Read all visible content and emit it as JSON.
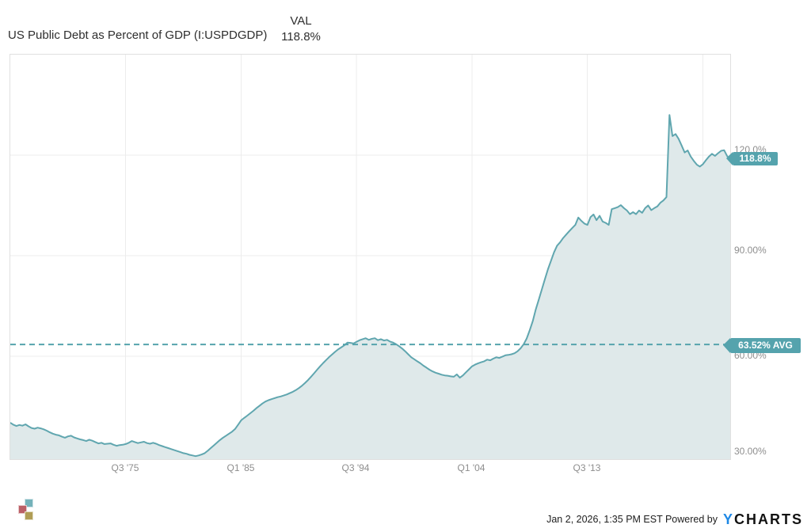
{
  "header": {
    "title": "US Public Debt as Percent of GDP (I:USPDGDP)",
    "val_label": "VAL",
    "val_value": "118.8%"
  },
  "chart_data": {
    "type": "area",
    "title": "US Public Debt as Percent of GDP (I:USPDGDP)",
    "unit": "percent of GDP",
    "grid": true,
    "legend_position": "top-right-of-title",
    "x_range": [
      1966.0,
      2025.25
    ],
    "y_axis_min": 29.3,
    "y_axis_max": 150.0,
    "x_ticks": [
      {
        "label": "Q3 '75",
        "t": 1975.5
      },
      {
        "label": "Q1 '85",
        "t": 1985.0
      },
      {
        "label": "Q3 '94",
        "t": 1994.5
      },
      {
        "label": "Q1 '04",
        "t": 2004.0
      },
      {
        "label": "Q3 '13",
        "t": 2013.5
      },
      {
        "label": "",
        "t": 2023.0
      }
    ],
    "y_ticks": [
      {
        "label": "120.0%",
        "value": 120
      },
      {
        "label": "90.00%",
        "value": 90
      },
      {
        "label": "60.00%",
        "value": 60
      },
      {
        "label": "30.00%",
        "value": 30
      }
    ],
    "average_line": {
      "value": 63.52,
      "label": "63.52% AVG",
      "style": "dashed"
    },
    "last_point": {
      "value": 118.8,
      "label": "118.8%"
    },
    "series": [
      {
        "name": "US Public Debt as Percent of GDP (I:USPDGDP)",
        "points": [
          [
            1966.0,
            40.2
          ],
          [
            1966.25,
            39.6
          ],
          [
            1966.5,
            39.2
          ],
          [
            1966.75,
            39.5
          ],
          [
            1967.0,
            39.3
          ],
          [
            1967.25,
            39.7
          ],
          [
            1967.5,
            39.1
          ],
          [
            1967.75,
            38.6
          ],
          [
            1968.0,
            38.4
          ],
          [
            1968.25,
            38.7
          ],
          [
            1968.5,
            38.5
          ],
          [
            1968.75,
            38.2
          ],
          [
            1969.0,
            37.8
          ],
          [
            1969.25,
            37.3
          ],
          [
            1969.5,
            36.9
          ],
          [
            1969.75,
            36.6
          ],
          [
            1970.0,
            36.4
          ],
          [
            1970.25,
            36.0
          ],
          [
            1970.5,
            35.7
          ],
          [
            1970.75,
            36.1
          ],
          [
            1971.0,
            36.3
          ],
          [
            1971.25,
            35.8
          ],
          [
            1971.5,
            35.5
          ],
          [
            1971.75,
            35.2
          ],
          [
            1972.0,
            35.0
          ],
          [
            1972.25,
            34.7
          ],
          [
            1972.5,
            35.1
          ],
          [
            1972.75,
            34.8
          ],
          [
            1973.0,
            34.4
          ],
          [
            1973.25,
            34.0
          ],
          [
            1973.5,
            34.2
          ],
          [
            1973.75,
            33.8
          ],
          [
            1974.0,
            33.9
          ],
          [
            1974.25,
            34.0
          ],
          [
            1974.5,
            33.6
          ],
          [
            1974.75,
            33.3
          ],
          [
            1975.0,
            33.5
          ],
          [
            1975.25,
            33.6
          ],
          [
            1975.5,
            33.8
          ],
          [
            1975.75,
            34.2
          ],
          [
            1976.0,
            34.7
          ],
          [
            1976.25,
            34.4
          ],
          [
            1976.5,
            34.1
          ],
          [
            1976.75,
            34.3
          ],
          [
            1977.0,
            34.5
          ],
          [
            1977.25,
            34.1
          ],
          [
            1977.5,
            33.9
          ],
          [
            1977.75,
            34.2
          ],
          [
            1978.0,
            33.9
          ],
          [
            1978.25,
            33.5
          ],
          [
            1978.5,
            33.2
          ],
          [
            1978.75,
            32.9
          ],
          [
            1979.0,
            32.6
          ],
          [
            1979.25,
            32.3
          ],
          [
            1979.5,
            32.0
          ],
          [
            1979.75,
            31.7
          ],
          [
            1980.0,
            31.4
          ],
          [
            1980.25,
            31.1
          ],
          [
            1980.5,
            30.9
          ],
          [
            1980.75,
            30.6
          ],
          [
            1981.0,
            30.4
          ],
          [
            1981.25,
            30.2
          ],
          [
            1981.5,
            30.4
          ],
          [
            1981.75,
            30.7
          ],
          [
            1982.0,
            31.1
          ],
          [
            1982.25,
            31.8
          ],
          [
            1982.5,
            32.6
          ],
          [
            1982.75,
            33.4
          ],
          [
            1983.0,
            34.2
          ],
          [
            1983.25,
            35.0
          ],
          [
            1983.5,
            35.7
          ],
          [
            1983.75,
            36.3
          ],
          [
            1984.0,
            36.9
          ],
          [
            1984.25,
            37.5
          ],
          [
            1984.5,
            38.3
          ],
          [
            1984.75,
            39.6
          ],
          [
            1985.0,
            40.9
          ],
          [
            1985.25,
            41.6
          ],
          [
            1985.5,
            42.3
          ],
          [
            1985.75,
            43.0
          ],
          [
            1986.0,
            43.7
          ],
          [
            1986.25,
            44.5
          ],
          [
            1986.5,
            45.2
          ],
          [
            1986.75,
            45.9
          ],
          [
            1987.0,
            46.5
          ],
          [
            1987.25,
            46.9
          ],
          [
            1987.5,
            47.2
          ],
          [
            1987.75,
            47.5
          ],
          [
            1988.0,
            47.8
          ],
          [
            1988.25,
            48.0
          ],
          [
            1988.5,
            48.3
          ],
          [
            1988.75,
            48.6
          ],
          [
            1989.0,
            49.0
          ],
          [
            1989.25,
            49.4
          ],
          [
            1989.5,
            49.9
          ],
          [
            1989.75,
            50.5
          ],
          [
            1990.0,
            51.2
          ],
          [
            1990.25,
            52.0
          ],
          [
            1990.5,
            52.9
          ],
          [
            1990.75,
            53.9
          ],
          [
            1991.0,
            54.9
          ],
          [
            1991.25,
            56.0
          ],
          [
            1991.5,
            57.0
          ],
          [
            1991.75,
            58.0
          ],
          [
            1992.0,
            58.9
          ],
          [
            1992.25,
            59.8
          ],
          [
            1992.5,
            60.6
          ],
          [
            1992.75,
            61.4
          ],
          [
            1993.0,
            62.1
          ],
          [
            1993.25,
            62.7
          ],
          [
            1993.5,
            63.3
          ],
          [
            1993.75,
            64.1
          ],
          [
            1994.0,
            64.0
          ],
          [
            1994.25,
            63.8
          ],
          [
            1994.5,
            64.3
          ],
          [
            1994.75,
            64.8
          ],
          [
            1995.0,
            65.1
          ],
          [
            1995.25,
            65.4
          ],
          [
            1995.5,
            64.9
          ],
          [
            1995.75,
            65.2
          ],
          [
            1996.0,
            65.4
          ],
          [
            1996.25,
            64.8
          ],
          [
            1996.5,
            65.1
          ],
          [
            1996.75,
            64.7
          ],
          [
            1997.0,
            64.9
          ],
          [
            1997.25,
            64.4
          ],
          [
            1997.5,
            64.1
          ],
          [
            1997.75,
            63.6
          ],
          [
            1998.0,
            63.0
          ],
          [
            1998.25,
            62.3
          ],
          [
            1998.5,
            61.5
          ],
          [
            1998.75,
            60.6
          ],
          [
            1999.0,
            59.7
          ],
          [
            1999.25,
            59.1
          ],
          [
            1999.5,
            58.5
          ],
          [
            1999.75,
            57.9
          ],
          [
            2000.0,
            57.2
          ],
          [
            2000.25,
            56.6
          ],
          [
            2000.5,
            56.0
          ],
          [
            2000.75,
            55.5
          ],
          [
            2001.0,
            55.1
          ],
          [
            2001.25,
            54.8
          ],
          [
            2001.5,
            54.5
          ],
          [
            2001.75,
            54.3
          ],
          [
            2002.0,
            54.2
          ],
          [
            2002.25,
            54.0
          ],
          [
            2002.5,
            53.9
          ],
          [
            2002.75,
            54.6
          ],
          [
            2003.0,
            53.6
          ],
          [
            2003.25,
            54.3
          ],
          [
            2003.5,
            55.2
          ],
          [
            2003.75,
            56.1
          ],
          [
            2004.0,
            57.0
          ],
          [
            2004.25,
            57.5
          ],
          [
            2004.5,
            57.9
          ],
          [
            2004.75,
            58.2
          ],
          [
            2005.0,
            58.5
          ],
          [
            2005.25,
            59.0
          ],
          [
            2005.5,
            58.8
          ],
          [
            2005.75,
            59.3
          ],
          [
            2006.0,
            59.7
          ],
          [
            2006.25,
            59.5
          ],
          [
            2006.5,
            59.9
          ],
          [
            2006.75,
            60.3
          ],
          [
            2007.0,
            60.4
          ],
          [
            2007.25,
            60.6
          ],
          [
            2007.5,
            60.9
          ],
          [
            2007.75,
            61.5
          ],
          [
            2008.0,
            62.4
          ],
          [
            2008.25,
            63.6
          ],
          [
            2008.5,
            65.3
          ],
          [
            2008.75,
            67.8
          ],
          [
            2009.0,
            70.5
          ],
          [
            2009.25,
            74.0
          ],
          [
            2009.5,
            77.0
          ],
          [
            2009.75,
            80.0
          ],
          [
            2010.0,
            83.0
          ],
          [
            2010.25,
            86.0
          ],
          [
            2010.5,
            88.5
          ],
          [
            2010.75,
            91.0
          ],
          [
            2011.0,
            93.0
          ],
          [
            2011.25,
            94.0
          ],
          [
            2011.5,
            95.3
          ],
          [
            2011.75,
            96.3
          ],
          [
            2012.0,
            97.3
          ],
          [
            2012.25,
            98.3
          ],
          [
            2012.5,
            99.2
          ],
          [
            2012.75,
            101.4
          ],
          [
            2013.0,
            100.4
          ],
          [
            2013.25,
            99.6
          ],
          [
            2013.5,
            99.2
          ],
          [
            2013.75,
            101.5
          ],
          [
            2014.0,
            102.3
          ],
          [
            2014.25,
            100.6
          ],
          [
            2014.5,
            101.9
          ],
          [
            2014.75,
            100.2
          ],
          [
            2015.0,
            99.8
          ],
          [
            2015.25,
            99.2
          ],
          [
            2015.5,
            103.9
          ],
          [
            2015.75,
            104.2
          ],
          [
            2016.0,
            104.5
          ],
          [
            2016.25,
            105.1
          ],
          [
            2016.5,
            104.2
          ],
          [
            2016.75,
            103.5
          ],
          [
            2017.0,
            102.4
          ],
          [
            2017.25,
            103.0
          ],
          [
            2017.5,
            102.4
          ],
          [
            2017.75,
            103.5
          ],
          [
            2018.0,
            102.8
          ],
          [
            2018.25,
            104.2
          ],
          [
            2018.5,
            105.0
          ],
          [
            2018.75,
            103.6
          ],
          [
            2019.0,
            104.2
          ],
          [
            2019.25,
            104.7
          ],
          [
            2019.5,
            105.8
          ],
          [
            2019.75,
            106.5
          ],
          [
            2020.0,
            107.5
          ],
          [
            2020.25,
            132.0
          ],
          [
            2020.5,
            125.7
          ],
          [
            2020.75,
            126.3
          ],
          [
            2021.0,
            124.9
          ],
          [
            2021.25,
            122.9
          ],
          [
            2021.5,
            120.8
          ],
          [
            2021.75,
            121.4
          ],
          [
            2022.0,
            119.6
          ],
          [
            2022.25,
            118.3
          ],
          [
            2022.5,
            117.2
          ],
          [
            2022.75,
            116.6
          ],
          [
            2023.0,
            117.3
          ],
          [
            2023.25,
            118.5
          ],
          [
            2023.5,
            119.6
          ],
          [
            2023.75,
            120.4
          ],
          [
            2024.0,
            119.8
          ],
          [
            2024.25,
            120.6
          ],
          [
            2024.5,
            121.3
          ],
          [
            2024.75,
            121.5
          ],
          [
            2025.0,
            119.7
          ],
          [
            2025.25,
            118.8
          ]
        ]
      }
    ]
  },
  "colors": {
    "line": "#60a6af",
    "fill": "#dfe9ea",
    "badge": "#55a3ad",
    "avg_line": "#55a3ad",
    "grid": "#ececec",
    "plot_border": "#e0e0e0",
    "axis_text": "#8e8e8e",
    "title_text": "#2e2e2e",
    "brand_blue": "#1e88e5",
    "brand_dark": "#121212",
    "logo_teal": "#74b2ba",
    "logo_red": "#bb5f66",
    "logo_gold": "#b09d55"
  },
  "footer": {
    "timestamp": "Jan 2, 2026, 1:35 PM EST",
    "powered_by": "Powered by",
    "brand_first_letter": "Y",
    "brand_rest": "CHARTS"
  }
}
